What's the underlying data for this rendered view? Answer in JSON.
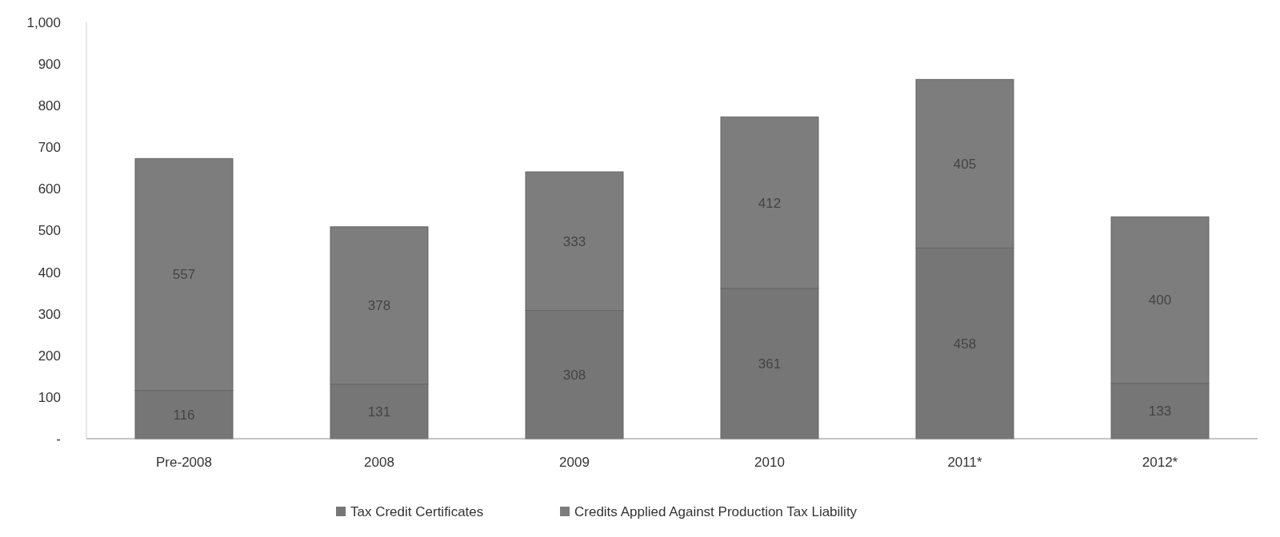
{
  "chart_data": {
    "type": "bar",
    "stacked": true,
    "categories": [
      "Pre-2008",
      "2008",
      "2009",
      "2010",
      "2011*",
      "2012*"
    ],
    "series": [
      {
        "name": "Tax Credit Certificates",
        "color": "#767676",
        "values": [
          116,
          131,
          308,
          361,
          458,
          133
        ]
      },
      {
        "name": "Credits Applied Against Production Tax Liability",
        "color": "#7d7d7d",
        "values": [
          557,
          378,
          333,
          412,
          405,
          400
        ]
      }
    ],
    "ylim": [
      0,
      1000
    ],
    "yticks": [
      {
        "value": 0,
        "label": "-"
      },
      100,
      200,
      300,
      400,
      500,
      600,
      700,
      800,
      900,
      {
        "value": 1000,
        "label": "1,000"
      }
    ],
    "data_labels": true,
    "legend": "bottom",
    "grid": false
  }
}
